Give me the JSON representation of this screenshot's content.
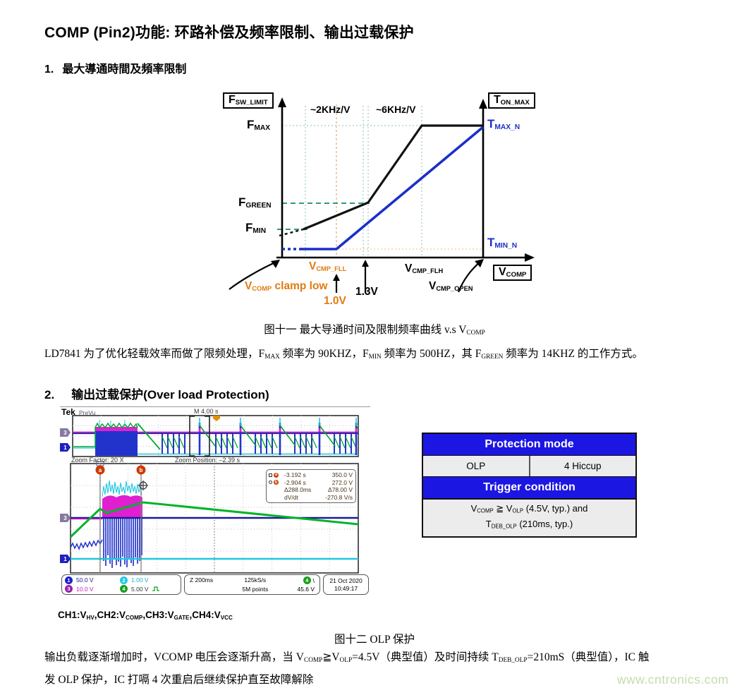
{
  "title": "COMP (Pin2)功能: 环路补偿及频率限制、输出过载保护",
  "section1": {
    "num": "1.",
    "text": "最大導通時間及頻率限制"
  },
  "section2": {
    "num": "2.",
    "text": "输出过载保护(Over load Protection)"
  },
  "fig11": {
    "caption": [
      {
        "t": "图十一  最大导通时间及限制频率曲线 v.s "
      },
      {
        "t": "V"
      },
      {
        "t": "COMP",
        "s": true
      }
    ],
    "labels": {
      "fsw_limit": [
        {
          "t": "F"
        },
        {
          "t": "SW_LIMIT",
          "s": true
        }
      ],
      "ton_max": [
        {
          "t": "T"
        },
        {
          "t": "ON_MAX",
          "s": true
        }
      ],
      "fmax": [
        {
          "t": "F"
        },
        {
          "t": "MAX",
          "s": true
        }
      ],
      "fgreen": [
        {
          "t": "F"
        },
        {
          "t": "GREEN",
          "s": true
        }
      ],
      "fmin": [
        {
          "t": "F"
        },
        {
          "t": "MIN",
          "s": true
        }
      ],
      "tmax_n": [
        {
          "t": "T"
        },
        {
          "t": "MAX_N",
          "s": true
        }
      ],
      "tmin_n": [
        {
          "t": "T"
        },
        {
          "t": "MIN_N",
          "s": true
        }
      ],
      "slope_low": "~2KHz/V",
      "slope_high": "~6KHz/V",
      "vcmp_fll": [
        {
          "t": "V"
        },
        {
          "t": "CMP_FLL",
          "s": true
        }
      ],
      "vcmp_flh": [
        {
          "t": "V"
        },
        {
          "t": "CMP_FLH",
          "s": true
        }
      ],
      "vcmp_open": [
        {
          "t": "V"
        },
        {
          "t": "CMP_OPEN",
          "s": true
        }
      ],
      "vcomp_axis": [
        {
          "t": "V"
        },
        {
          "t": "COMP",
          "s": true
        }
      ],
      "clamp_low": [
        {
          "t": "V"
        },
        {
          "t": "COMP",
          "s": true
        },
        {
          "t": " clamp low"
        }
      ],
      "v_1_0": "1.0V",
      "v_1_3": "1.3V"
    }
  },
  "para1": [
    {
      "t": "LD7841 为了优化轻载效率而做了限频处理，F"
    },
    {
      "t": "MAX",
      "s": true
    },
    {
      "t": " 频率为 90KHZ，F"
    },
    {
      "t": "MIN",
      "s": true
    },
    {
      "t": " 频率为 500HZ，其 F"
    },
    {
      "t": "GREEN",
      "s": true
    },
    {
      "t": " 频率为 14KHZ 的工作方式。"
    }
  ],
  "scope": {
    "brand": "Tek",
    "acq_mode": "PreVu",
    "timebase": "M 4.00 s",
    "zoom_factor": "Zoom Factor: 20 X",
    "zoom_position": "Zoom Position: –2.39 s",
    "cursor_a": "a",
    "cursor_b": "b",
    "readout": {
      "a_time": "-3.192 s",
      "a_volt": "350.0 V",
      "b_time": "-2.904 s",
      "b_volt": "272.0 V",
      "d_time": "Δ288.0ms",
      "d_volt": "Δ78.00 V",
      "dvdt_label": "dV/dt",
      "dvdt": "-270.8 V/s"
    },
    "ch": [
      {
        "n": "1",
        "scale": "50.0 V"
      },
      {
        "n": "3",
        "scale": "10.0 V"
      },
      {
        "n": "2",
        "scale": "1.00 V"
      },
      {
        "n": "4",
        "scale": "5.00 V"
      }
    ],
    "zoom_scale": "Z 200ms",
    "sample_rate": "125kS/s",
    "record_length": "5M points",
    "trig_ch": "4",
    "trig_slope": "\\",
    "trig_level": "45.6 V",
    "date": "21 Oct 2020",
    "time": "10:49:17"
  },
  "table": {
    "header1": "Protection mode",
    "mode_left": "OLP",
    "mode_right": "4 Hiccup",
    "header2": "Trigger condition",
    "cond1": [
      {
        "t": "V"
      },
      {
        "t": "COMP",
        "s": true
      },
      {
        "t": " ≧ V"
      },
      {
        "t": "OLP",
        "s": true
      },
      {
        "t": " (4.5V, typ.) and"
      }
    ],
    "cond2": [
      {
        "t": "T"
      },
      {
        "t": "DEB_OLP",
        "s": true
      },
      {
        "t": " (210ms, typ.)"
      }
    ]
  },
  "ch_legend": [
    {
      "t": "CH1:V"
    },
    {
      "t": "HV",
      "s": true
    },
    {
      "t": ",CH2:V"
    },
    {
      "t": "COMP",
      "s": true
    },
    {
      "t": ",CH3:V"
    },
    {
      "t": "GATE",
      "s": true
    },
    {
      "t": ",CH4:V"
    },
    {
      "t": "VCC",
      "s": true
    }
  ],
  "fig12_caption": "图十二  OLP 保护",
  "para2_line1": [
    {
      "t": "输出负载逐渐增加时，VCOMP 电压会逐渐升高，当 V"
    },
    {
      "t": "COMP",
      "s": true
    },
    {
      "t": "≧V"
    },
    {
      "t": "OLP",
      "s": true
    },
    {
      "t": "=4.5V（典型值）及时间持续 T"
    },
    {
      "t": "DEB_OLP",
      "s": true
    },
    {
      "t": "=210mS（典型值），IC 触"
    }
  ],
  "para2_line2": "发 OLP 保护，IC 打嗝 4 次重启后继续保护直至故障解除",
  "watermark": "www.cntronics.com",
  "chart_data": {
    "type": "line",
    "title": "最大导通时间及限制频率曲线 v.s VCOMP",
    "xlabel": "VCOMP (V)",
    "ylabel_left": "FSW_LIMIT (switching frequency limit)",
    "ylabel_right": "TON_MAX (maximum on-time)",
    "x_breakpoints": [
      "VCOMP clamp low",
      "VCMP_FLL = 1.0V",
      "1.3V",
      "VCMP_FLH",
      "VCMP_OPEN"
    ],
    "series": [
      {
        "name": "FSW_LIMIT",
        "color": "#111111",
        "points": [
          {
            "x": "VCOMP clamp low",
            "y": "FMIN = 500HZ"
          },
          {
            "x": "1.3V",
            "y": "FGREEN = 14KHZ"
          },
          {
            "x": "VCMP_FLH",
            "y": "FMAX = 90KHZ"
          },
          {
            "x": "VCMP_OPEN",
            "y": "FMAX = 90KHZ"
          }
        ],
        "slopes": [
          "~2KHz/V between VCMP_FLL and 1.3V",
          "~6KHz/V between 1.3V and VCMP_FLH"
        ]
      },
      {
        "name": "TON_MAX",
        "color": "#1b2fc8",
        "points": [
          {
            "x": "VCOMP clamp low",
            "y": "TMIN_N"
          },
          {
            "x": "VCMP_FLL = 1.0V",
            "y": "TMIN_N"
          },
          {
            "x": "VCMP_OPEN",
            "y": "TMAX_N"
          }
        ]
      }
    ],
    "grid": "dotted reference lines",
    "legend_position": "labels at line ends"
  }
}
